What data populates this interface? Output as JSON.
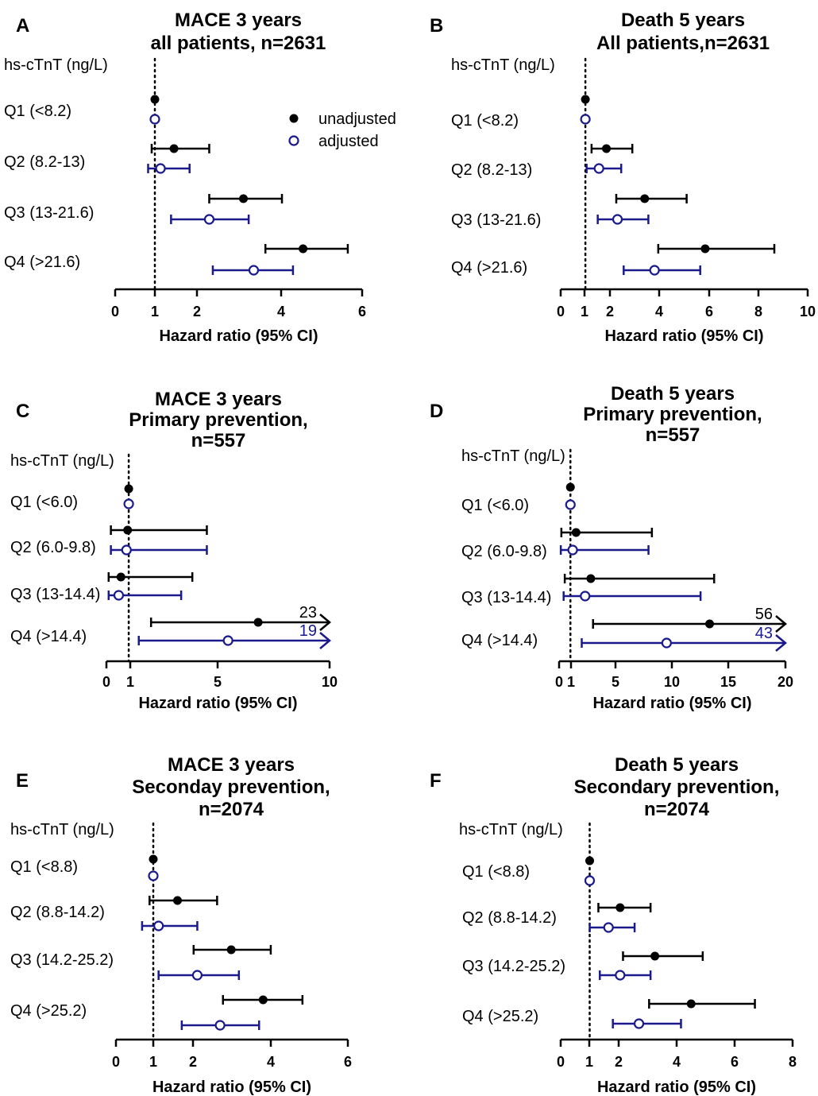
{
  "colors": {
    "unadjusted": "#000000",
    "adjusted": "#1a1a8c"
  },
  "legend": {
    "unadjusted": "unadjusted",
    "adjusted": "adjusted"
  },
  "chart_data": [
    {
      "panel": "A",
      "type": "forest",
      "title": [
        "MACE 3 years",
        "all patients, n=2631"
      ],
      "ylabel_header": "hs-cTnT (ng/L)",
      "xlabel": "Hazard ratio (95% CI)",
      "xticks": [
        "0",
        "1",
        "2",
        "4",
        "6"
      ],
      "scale": "log",
      "xlim": [
        0,
        6
      ],
      "categories": [
        "Q1 (<8.2)",
        "Q2 (8.2-13)",
        "Q3 (13-21.6)",
        "Q4 (>21.6)"
      ],
      "series": [
        {
          "name": "unadjusted",
          "points": [
            {
              "est": 1.0
            },
            {
              "est": 1.18,
              "lo": 0.92,
              "hi": 1.6
            },
            {
              "est": 2.15,
              "lo": 1.6,
              "hi": 3.0
            },
            {
              "est": 3.6,
              "lo": 2.6,
              "hi": 5.3
            }
          ]
        },
        {
          "name": "adjusted",
          "points": [
            {
              "est": 1.0
            },
            {
              "est": 1.05,
              "lo": 0.83,
              "hi": 1.35
            },
            {
              "est": 1.6,
              "lo": 1.15,
              "hi": 2.25
            },
            {
              "est": 2.35,
              "lo": 1.65,
              "hi": 3.3
            }
          ]
        }
      ]
    },
    {
      "panel": "B",
      "type": "forest",
      "title": [
        "Death 5 years",
        "All patients,n=2631"
      ],
      "ylabel_header": "hs-cTnT (ng/L)",
      "xlabel": "Hazard ratio (95% CI)",
      "xticks": [
        "0",
        "1",
        "2",
        "4",
        "6",
        "8",
        "10"
      ],
      "scale": "linear",
      "xlim": [
        0,
        10
      ],
      "categories": [
        "Q1 (<8.2)",
        "Q2 (8.2-13)",
        "Q3 (13-21.6)",
        "Q4 (>21.6)"
      ],
      "series": [
        {
          "name": "unadjusted",
          "points": [
            {
              "est": 1.0
            },
            {
              "est": 1.85,
              "lo": 1.25,
              "hi": 2.9
            },
            {
              "est": 3.4,
              "lo": 2.25,
              "hi": 5.1
            },
            {
              "est": 5.85,
              "lo": 3.95,
              "hi": 8.65
            }
          ]
        },
        {
          "name": "adjusted",
          "points": [
            {
              "est": 1.0
            },
            {
              "est": 1.55,
              "lo": 1.05,
              "hi": 2.45
            },
            {
              "est": 2.3,
              "lo": 1.5,
              "hi": 3.55
            },
            {
              "est": 3.8,
              "lo": 2.55,
              "hi": 5.65
            }
          ]
        }
      ]
    },
    {
      "panel": "C",
      "type": "forest",
      "title": [
        "MACE 3 years",
        "Primary prevention,",
        "n=557"
      ],
      "ylabel_header": "hs-cTnT (ng/L)",
      "xlabel": "Hazard ratio (95% CI)",
      "xticks": [
        "0",
        "1",
        "5",
        "10"
      ],
      "scale": "linear",
      "xlim": [
        0,
        10
      ],
      "categories": [
        "Q1 (<6.0)",
        "Q2 (6.0-9.8)",
        "Q3 (13-14.4)",
        "Q4 (>14.4)"
      ],
      "series": [
        {
          "name": "unadjusted",
          "points": [
            {
              "est": 1.0
            },
            {
              "est": 0.95,
              "lo": 0.2,
              "hi": 4.5
            },
            {
              "est": 0.65,
              "lo": 0.1,
              "hi": 3.85
            },
            {
              "est": 6.8,
              "lo": 2.0,
              "hi": 23,
              "hi_label": "23"
            }
          ]
        },
        {
          "name": "adjusted",
          "points": [
            {
              "est": 1.0
            },
            {
              "est": 0.9,
              "lo": 0.2,
              "hi": 4.5
            },
            {
              "est": 0.55,
              "lo": 0.1,
              "hi": 3.35
            },
            {
              "est": 5.45,
              "lo": 1.45,
              "hi": 19,
              "hi_label": "19"
            }
          ]
        }
      ]
    },
    {
      "panel": "D",
      "type": "forest",
      "title": [
        "Death 5 years",
        "Primary prevention,",
        "n=557"
      ],
      "ylabel_header": "hs-cTnT (ng/L)",
      "xlabel": "Hazard ratio (95% CI)",
      "xticks": [
        "0",
        "1",
        "5",
        "10",
        "15",
        "20"
      ],
      "scale": "linear",
      "xlim": [
        0,
        20
      ],
      "categories": [
        "Q1 (<6.0)",
        "Q2 (6.0-9.8)",
        "Q3 (13-14.4)",
        "Q4 (>14.4)"
      ],
      "series": [
        {
          "name": "unadjusted",
          "points": [
            {
              "est": 1.0
            },
            {
              "est": 1.5,
              "lo": 0.2,
              "hi": 8.2
            },
            {
              "est": 2.8,
              "lo": 0.5,
              "hi": 13.7
            },
            {
              "est": 13.3,
              "lo": 3.0,
              "hi": 56,
              "hi_label": "56"
            }
          ]
        },
        {
          "name": "adjusted",
          "points": [
            {
              "est": 1.0
            },
            {
              "est": 1.2,
              "lo": 0.15,
              "hi": 7.9
            },
            {
              "est": 2.3,
              "lo": 0.4,
              "hi": 12.5
            },
            {
              "est": 9.5,
              "lo": 2.0,
              "hi": 43,
              "hi_label": "43"
            }
          ]
        }
      ]
    },
    {
      "panel": "E",
      "type": "forest",
      "title": [
        "MACE 3 years",
        "Seconday prevention,",
        "n=2074"
      ],
      "ylabel_header": "hs-cTnT (ng/L)",
      "xlabel": "Hazard ratio (95% CI)",
      "xticks": [
        "0",
        "1",
        "2",
        "4",
        "6"
      ],
      "scale": "log",
      "xlim": [
        0,
        6
      ],
      "categories": [
        "Q1 (<8.8)",
        "Q2 (8.8-14.2)",
        "Q3 (14.2-25.2)",
        "Q4 (>25.2)"
      ],
      "series": [
        {
          "name": "unadjusted",
          "points": [
            {
              "est": 1.0
            },
            {
              "est": 1.25,
              "lo": 0.9,
              "hi": 1.8
            },
            {
              "est": 2.05,
              "lo": 1.45,
              "hi": 2.95
            },
            {
              "est": 2.75,
              "lo": 1.9,
              "hi": 3.95
            }
          ]
        },
        {
          "name": "adjusted",
          "points": [
            {
              "est": 1.0
            },
            {
              "est": 1.05,
              "lo": 0.7,
              "hi": 1.5
            },
            {
              "est": 1.5,
              "lo": 1.05,
              "hi": 2.2
            },
            {
              "est": 1.85,
              "lo": 1.3,
              "hi": 2.65
            }
          ]
        }
      ]
    },
    {
      "panel": "F",
      "type": "forest",
      "title": [
        "Death 5 years",
        "Secondary prevention,",
        "n=2074"
      ],
      "ylabel_header": "hs-cTnT (ng/L)",
      "xlabel": "Hazard ratio (95% CI)",
      "xticks": [
        "0",
        "1",
        "2",
        "4",
        "6",
        "8"
      ],
      "scale": "linear",
      "xlim": [
        0,
        8
      ],
      "categories": [
        "Q1 (<8.8)",
        "Q2 (8.8-14.2)",
        "Q3 (14.2-25.2)",
        "Q4 (>25.2)"
      ],
      "series": [
        {
          "name": "unadjusted",
          "points": [
            {
              "est": 1.0
            },
            {
              "est": 2.05,
              "lo": 1.3,
              "hi": 3.1
            },
            {
              "est": 3.25,
              "lo": 2.15,
              "hi": 4.9
            },
            {
              "est": 4.5,
              "lo": 3.05,
              "hi": 6.7
            }
          ]
        },
        {
          "name": "adjusted",
          "points": [
            {
              "est": 1.0
            },
            {
              "est": 1.65,
              "lo": 1.0,
              "hi": 2.55
            },
            {
              "est": 2.05,
              "lo": 1.35,
              "hi": 3.1
            },
            {
              "est": 2.7,
              "lo": 1.8,
              "hi": 4.15
            }
          ]
        }
      ]
    }
  ]
}
